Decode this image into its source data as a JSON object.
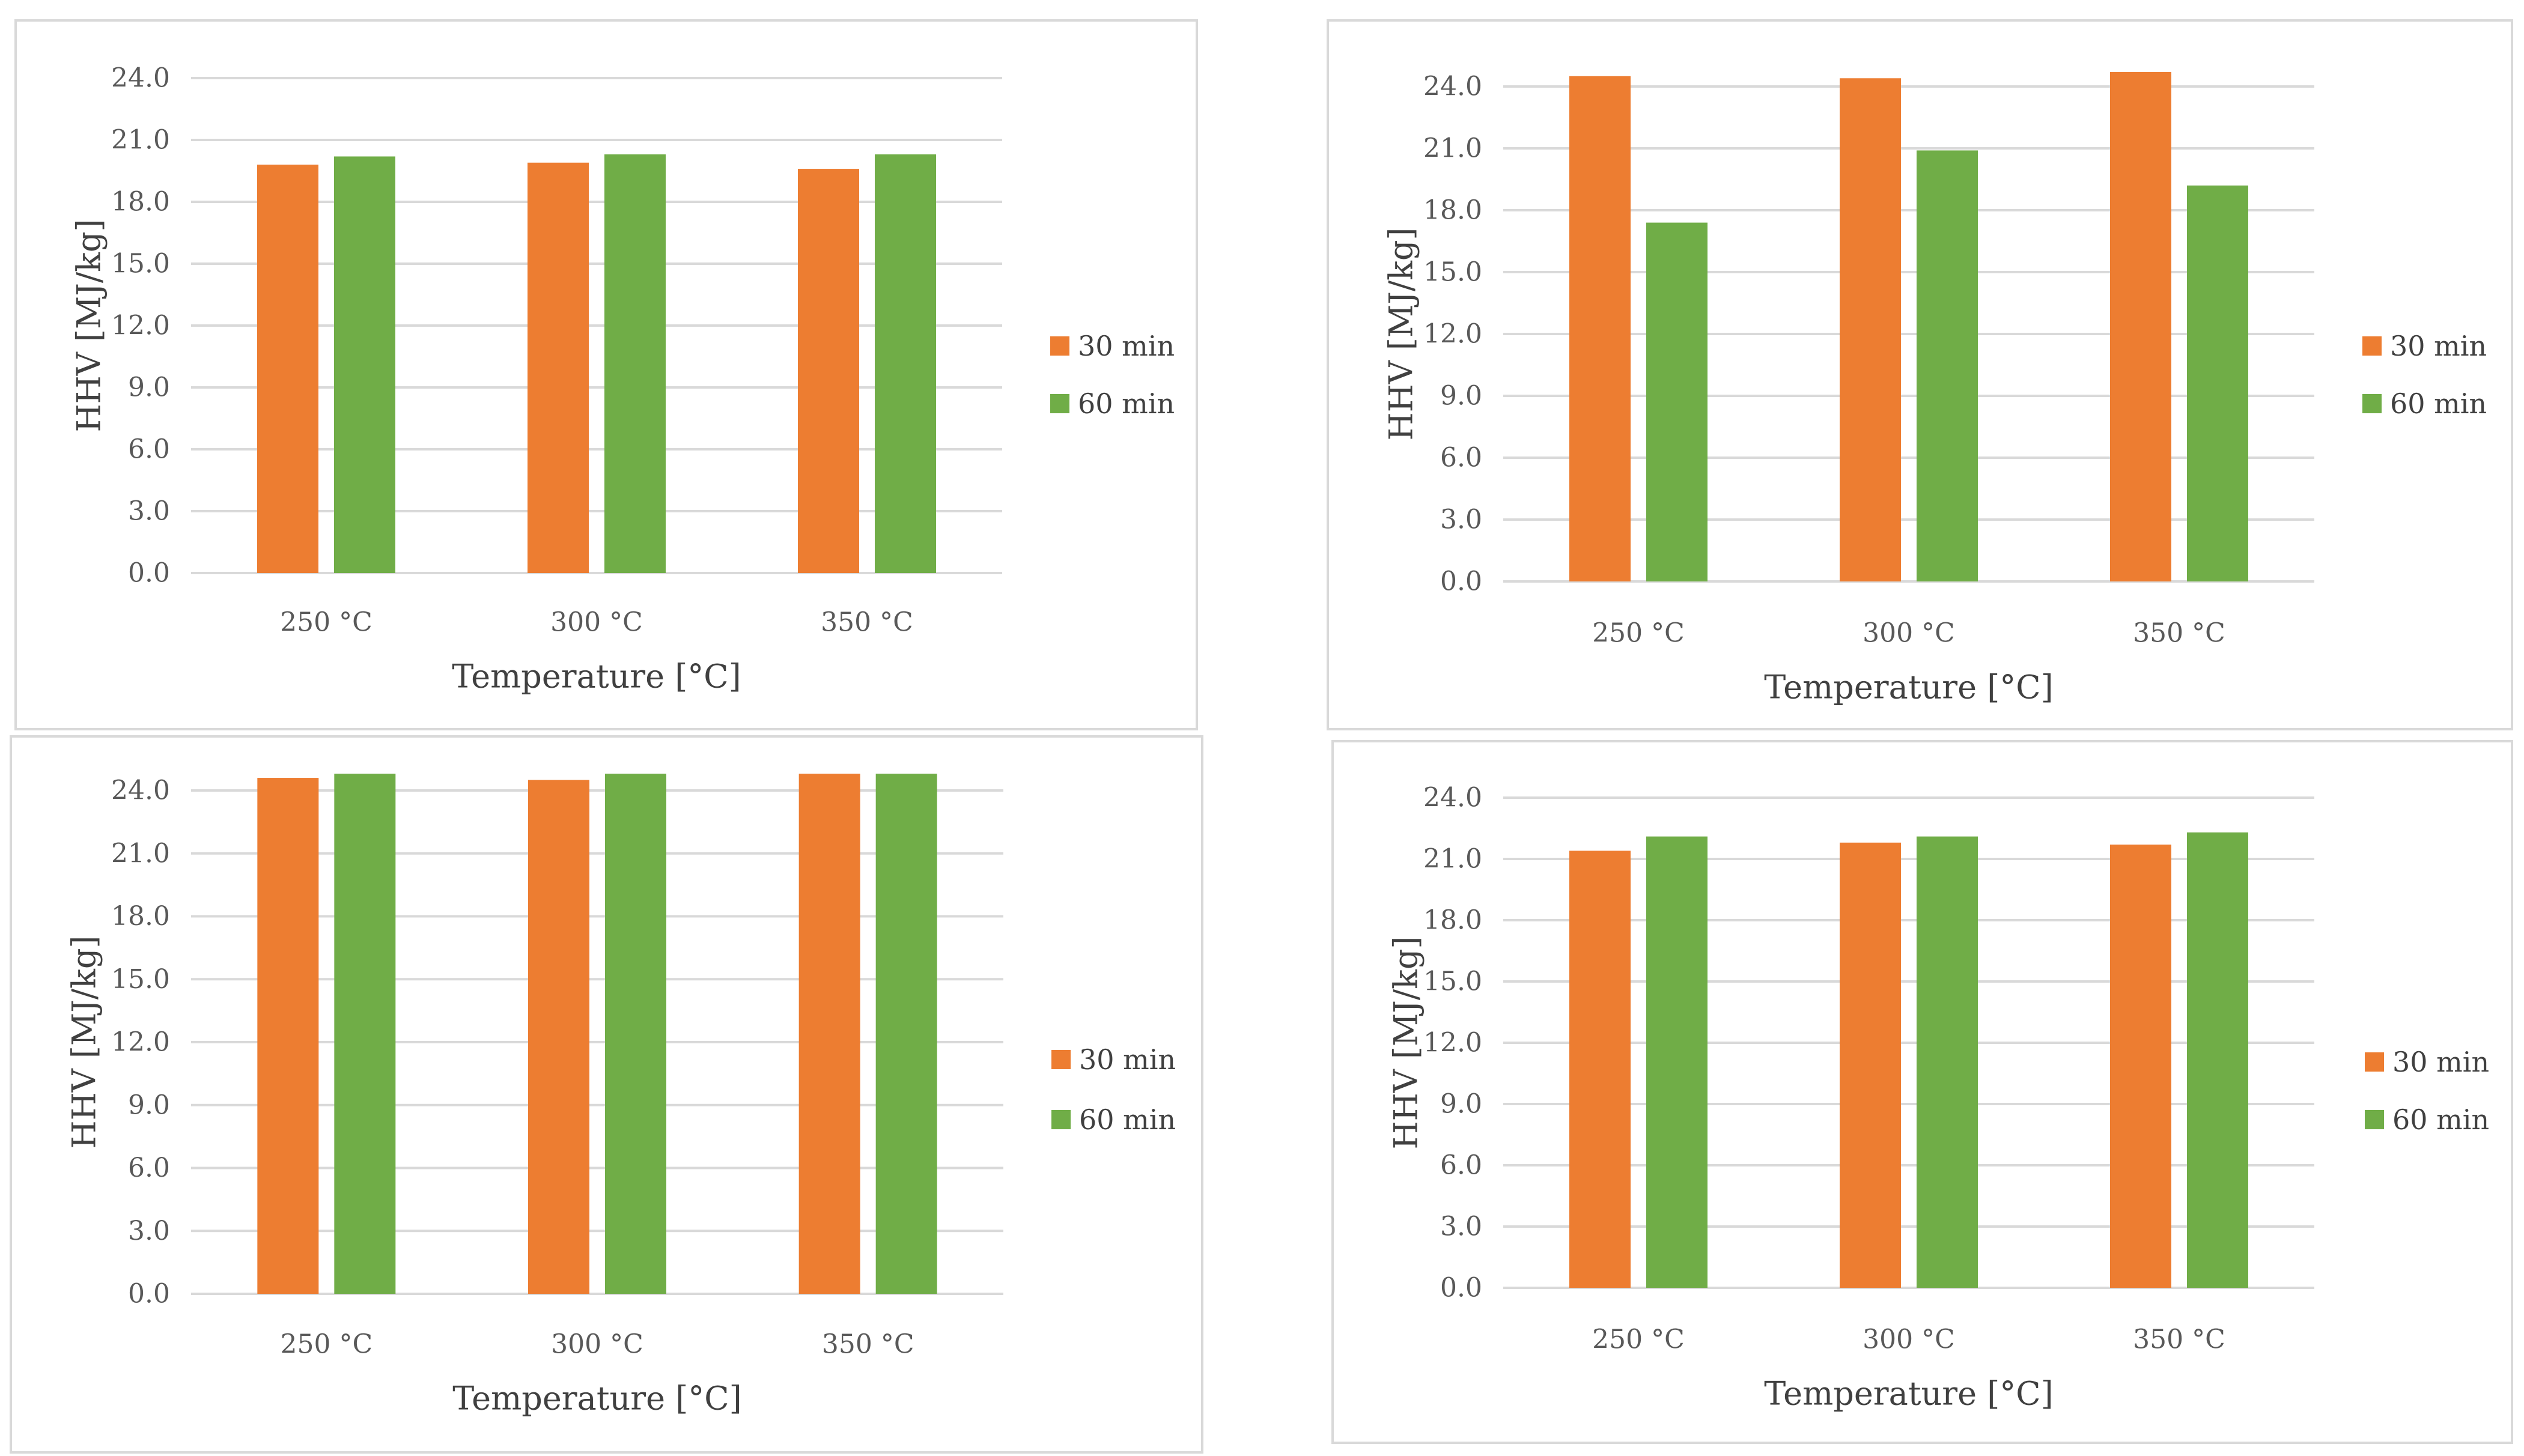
{
  "colors": {
    "series_30": "#ED7D31",
    "series_60": "#70AD47",
    "gridline": "#d9d9d9",
    "border": "#d9d9d9",
    "text": "#595959"
  },
  "chart_data": [
    {
      "type": "bar",
      "categories": [
        "250 °C",
        "300 °C",
        "350 °C"
      ],
      "series": [
        {
          "name": "30 min",
          "values": [
            19.8,
            19.9,
            19.6
          ]
        },
        {
          "name": "60 min",
          "values": [
            20.2,
            20.3,
            20.3
          ]
        }
      ],
      "xlabel": "Temperature [°C]",
      "ylabel": "HHV [MJ/kg]",
      "ylim": [
        0,
        24
      ],
      "yticks": [
        "0.0",
        "3.0",
        "6.0",
        "9.0",
        "12.0",
        "15.0",
        "18.0",
        "21.0",
        "24.0"
      ],
      "grid": true,
      "legend": "right"
    },
    {
      "type": "bar",
      "categories": [
        "250 °C",
        "300 °C",
        "350 °C"
      ],
      "series": [
        {
          "name": "30 min",
          "values": [
            24.5,
            24.4,
            24.7
          ]
        },
        {
          "name": "60 min",
          "values": [
            17.4,
            20.9,
            19.2
          ]
        }
      ],
      "xlabel": "Temperature [°C]",
      "ylabel": "HHV [MJ/kg]",
      "ylim": [
        0,
        24
      ],
      "yticks": [
        "0.0",
        "3.0",
        "6.0",
        "9.0",
        "12.0",
        "15.0",
        "18.0",
        "21.0",
        "24.0"
      ],
      "grid": true,
      "legend": "right"
    },
    {
      "type": "bar",
      "categories": [
        "250 °C",
        "300 °C",
        "350 °C"
      ],
      "series": [
        {
          "name": "30 min",
          "values": [
            24.6,
            24.5,
            24.8
          ]
        },
        {
          "name": "60 min",
          "values": [
            25.0,
            25.0,
            25.0
          ]
        }
      ],
      "xlabel": "Temperature [°C]",
      "ylabel": "HHV [MJ/kg]",
      "ylim": [
        0,
        24
      ],
      "yticks": [
        "0.0",
        "3.0",
        "6.0",
        "9.0",
        "12.0",
        "15.0",
        "18.0",
        "21.0",
        "24.0"
      ],
      "grid": true,
      "legend": "right"
    },
    {
      "type": "bar",
      "categories": [
        "250 °C",
        "300 °C",
        "350 °C"
      ],
      "series": [
        {
          "name": "30 min",
          "values": [
            21.4,
            21.8,
            21.7
          ]
        },
        {
          "name": "60 min",
          "values": [
            22.1,
            22.1,
            22.3
          ]
        }
      ],
      "xlabel": "Temperature [°C]",
      "ylabel": "HHV [MJ/kg]",
      "ylim": [
        0,
        24
      ],
      "yticks": [
        "0.0",
        "3.0",
        "6.0",
        "9.0",
        "12.0",
        "15.0",
        "18.0",
        "21.0",
        "24.0"
      ],
      "grid": true,
      "legend": "right"
    }
  ]
}
